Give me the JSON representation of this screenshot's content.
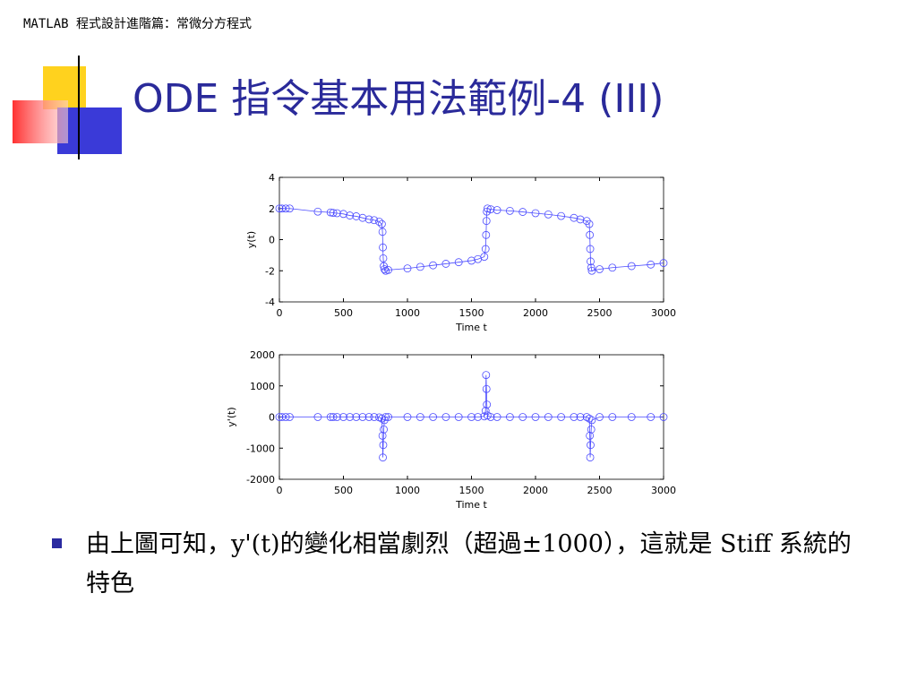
{
  "header": "MATLAB 程式設計進階篇：常微分方程式",
  "title": "ODE 指令基本用法範例-4 (III)",
  "bullet": "由上圖可知，y'(t)的變化相當劇烈（超過±1000），這就是 Stiff 系統的特色",
  "chart_data": [
    {
      "type": "line",
      "xlabel": "Time t",
      "ylabel": "y(t)",
      "color": "#4b4bff",
      "marker": "circle",
      "xlim": [
        0,
        3000
      ],
      "xticks": [
        0,
        500,
        1000,
        1500,
        2000,
        2500,
        3000
      ],
      "ylim": [
        -4,
        4
      ],
      "yticks": [
        -4,
        -2,
        0,
        2,
        4
      ],
      "x": [
        0,
        20,
        50,
        80,
        300,
        400,
        420,
        450,
        500,
        550,
        600,
        650,
        700,
        740,
        780,
        800,
        805,
        808,
        811,
        815,
        820,
        830,
        850,
        1000,
        1100,
        1200,
        1300,
        1400,
        1500,
        1550,
        1600,
        1610,
        1614,
        1617,
        1620,
        1625,
        1650,
        1700,
        1800,
        1900,
        2000,
        2100,
        2200,
        2300,
        2350,
        2400,
        2420,
        2424,
        2427,
        2430,
        2435,
        2440,
        2500,
        2600,
        2750,
        2900,
        3000
      ],
      "values": [
        2,
        2,
        2,
        2,
        1.8,
        1.75,
        1.72,
        1.7,
        1.65,
        1.55,
        1.5,
        1.4,
        1.3,
        1.25,
        1.15,
        1.0,
        0.5,
        -0.5,
        -1.2,
        -1.7,
        -1.9,
        -2,
        -1.95,
        -1.85,
        -1.75,
        -1.65,
        -1.55,
        -1.45,
        -1.35,
        -1.25,
        -1.1,
        -0.6,
        0.3,
        1.2,
        1.8,
        2,
        1.95,
        1.9,
        1.85,
        1.78,
        1.7,
        1.62,
        1.52,
        1.4,
        1.3,
        1.2,
        1.0,
        0.3,
        -0.6,
        -1.4,
        -1.8,
        -2,
        -1.9,
        -1.8,
        -1.7,
        -1.6,
        -1.5
      ]
    },
    {
      "type": "line",
      "xlabel": "Time t",
      "ylabel": "y'(t)",
      "color": "#4b4bff",
      "marker": "circle",
      "xlim": [
        0,
        3000
      ],
      "xticks": [
        0,
        500,
        1000,
        1500,
        2000,
        2500,
        3000
      ],
      "ylim": [
        -2000,
        2000
      ],
      "yticks": [
        -2000,
        -1000,
        0,
        1000,
        2000
      ],
      "x": [
        0,
        20,
        50,
        80,
        300,
        400,
        420,
        450,
        500,
        550,
        600,
        650,
        700,
        740,
        780,
        800,
        805,
        808,
        811,
        815,
        820,
        830,
        850,
        1000,
        1100,
        1200,
        1300,
        1400,
        1500,
        1550,
        1600,
        1610,
        1614,
        1617,
        1620,
        1625,
        1650,
        1700,
        1800,
        1900,
        2000,
        2100,
        2200,
        2300,
        2350,
        2400,
        2420,
        2424,
        2427,
        2430,
        2435,
        2440,
        2500,
        2600,
        2750,
        2900,
        3000
      ],
      "values": [
        0,
        0,
        0,
        0,
        0,
        0,
        0,
        0,
        0,
        0,
        0,
        0,
        0,
        0,
        -10,
        -50,
        -600,
        -1300,
        -900,
        -400,
        -100,
        0,
        0,
        0,
        0,
        0,
        0,
        0,
        0,
        0,
        20,
        200,
        1350,
        900,
        400,
        50,
        0,
        0,
        0,
        0,
        0,
        0,
        0,
        0,
        0,
        0,
        -50,
        -600,
        -1300,
        -900,
        -400,
        -100,
        0,
        0,
        0,
        0,
        0
      ]
    }
  ]
}
